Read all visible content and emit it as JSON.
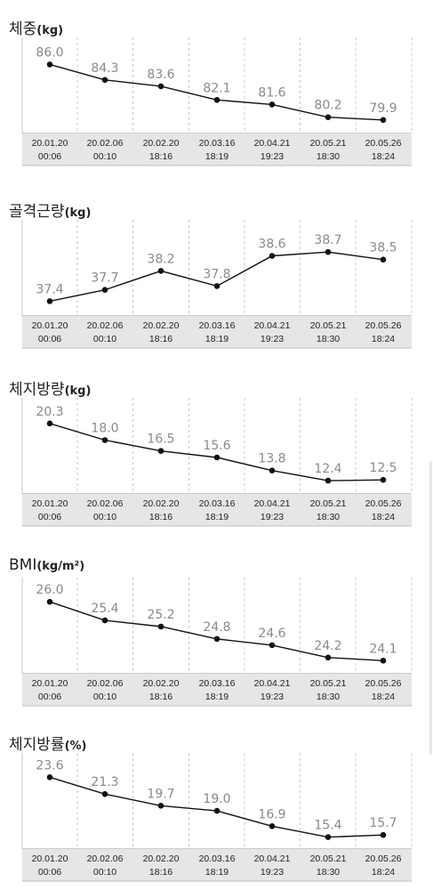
{
  "chart_data": [
    {
      "type": "line",
      "title": "체중",
      "unit": "(kg)",
      "categories": [
        [
          "20.01.20",
          "00:06"
        ],
        [
          "20.02.06",
          "00:10"
        ],
        [
          "20.02.20",
          "18:16"
        ],
        [
          "20.03.16",
          "18:19"
        ],
        [
          "20.04.21",
          "19:23"
        ],
        [
          "20.05.21",
          "18:30"
        ],
        [
          "20.05.26",
          "18:24"
        ]
      ],
      "values": [
        86.0,
        84.3,
        83.6,
        82.1,
        81.6,
        80.2,
        79.9
      ],
      "labels": [
        "86.0",
        "84.3",
        "83.6",
        "82.1",
        "81.6",
        "80.2",
        "79.9"
      ],
      "ylim": [
        79.0,
        87.5
      ],
      "grid": "vertical-dashed"
    },
    {
      "type": "line",
      "title": "골격근량",
      "unit": "(kg)",
      "categories": [
        [
          "20.01.20",
          "00:06"
        ],
        [
          "20.02.06",
          "00:10"
        ],
        [
          "20.02.20",
          "18:16"
        ],
        [
          "20.03.16",
          "18:19"
        ],
        [
          "20.04.21",
          "19:23"
        ],
        [
          "20.05.21",
          "18:30"
        ],
        [
          "20.05.26",
          "18:24"
        ]
      ],
      "values": [
        37.4,
        37.7,
        38.2,
        37.8,
        38.6,
        38.7,
        38.5
      ],
      "labels": [
        "37.4",
        "37.7",
        "38.2",
        "37.8",
        "38.6",
        "38.7",
        "38.5"
      ],
      "ylim": [
        37.15,
        39.2
      ],
      "grid": "vertical-dashed"
    },
    {
      "type": "line",
      "title": "체지방량",
      "unit": "(kg)",
      "categories": [
        [
          "20.01.20",
          "00:06"
        ],
        [
          "20.02.06",
          "00:10"
        ],
        [
          "20.02.20",
          "18:16"
        ],
        [
          "20.03.16",
          "18:19"
        ],
        [
          "20.04.21",
          "19:23"
        ],
        [
          "20.05.21",
          "18:30"
        ],
        [
          "20.05.26",
          "18:24"
        ]
      ],
      "values": [
        20.3,
        18.0,
        16.5,
        15.6,
        13.8,
        12.4,
        12.5
      ],
      "labels": [
        "20.3",
        "18.0",
        "16.5",
        "15.6",
        "13.8",
        "12.4",
        "12.5"
      ],
      "ylim": [
        11.3,
        22.0
      ],
      "grid": "vertical-dashed"
    },
    {
      "type": "line",
      "title": "BMI",
      "unit": "(kg/m²)",
      "categories": [
        [
          "20.01.20",
          "00:06"
        ],
        [
          "20.02.06",
          "00:10"
        ],
        [
          "20.02.20",
          "18:16"
        ],
        [
          "20.03.16",
          "18:19"
        ],
        [
          "20.04.21",
          "19:23"
        ],
        [
          "20.05.21",
          "18:30"
        ],
        [
          "20.05.26",
          "18:24"
        ]
      ],
      "values": [
        26.0,
        25.4,
        25.2,
        24.8,
        24.6,
        24.2,
        24.1
      ],
      "labels": [
        "26.0",
        "25.4",
        "25.2",
        "24.8",
        "24.6",
        "24.2",
        "24.1"
      ],
      "ylim": [
        23.85,
        26.35
      ],
      "grid": "vertical-dashed"
    },
    {
      "type": "line",
      "title": "체지방률",
      "unit": "(%)",
      "categories": [
        [
          "20.01.20",
          "00:06"
        ],
        [
          "20.02.06",
          "00:10"
        ],
        [
          "20.02.20",
          "18:16"
        ],
        [
          "20.03.16",
          "18:19"
        ],
        [
          "20.04.21",
          "19:23"
        ],
        [
          "20.05.21",
          "18:30"
        ],
        [
          "20.05.26",
          "18:24"
        ]
      ],
      "values": [
        23.6,
        21.3,
        19.7,
        19.0,
        16.9,
        15.4,
        15.7
      ],
      "labels": [
        "23.6",
        "21.3",
        "19.7",
        "19.0",
        "16.9",
        "15.4",
        "15.7"
      ],
      "ylim": [
        14.5,
        25.1
      ],
      "grid": "vertical-dashed"
    }
  ],
  "colors": {
    "line": "#111111",
    "point": "#111111",
    "value_label": "#8a8a8a",
    "axis_band": "#e6e6e6",
    "grid": "#c8c8c8",
    "axis_line": "#9a9a9a"
  }
}
